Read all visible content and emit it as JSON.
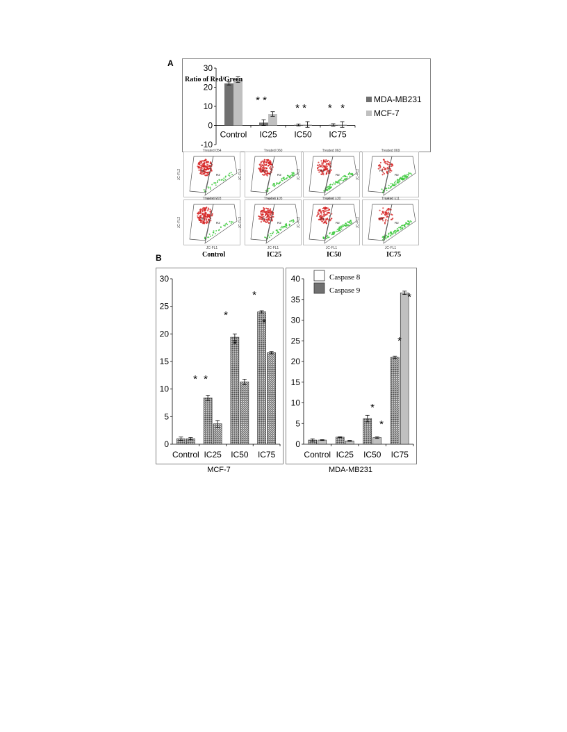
{
  "panels": {
    "a": "A",
    "b": "B"
  },
  "colors": {
    "dark_gray": "#707070",
    "light_gray": "#c0c0c0",
    "flow_red": "#d42020",
    "flow_green": "#38c838"
  },
  "chart_data": [
    {
      "id": "ratio",
      "type": "bar",
      "ylabel": "Ratio of  Red/Green",
      "categories": [
        "Control",
        "IC25",
        "IC50",
        "IC75"
      ],
      "ylim": [
        -10,
        30
      ],
      "yticks": [
        -10,
        0,
        10,
        20,
        30
      ],
      "legend_position": "right",
      "series": [
        {
          "name": "MDA-MB231",
          "color": "#707070",
          "values": [
            22,
            1.5,
            0.3,
            0.3
          ],
          "errors": [
            0.8,
            1.5,
            0.5,
            0.6
          ]
        },
        {
          "name": "MCF-7",
          "color": "#c0c0c0",
          "values": [
            24,
            6,
            0.5,
            0.5
          ],
          "errors": [
            1.5,
            1.2,
            1.5,
            1.5
          ]
        }
      ],
      "annotations": [
        "* *",
        "* *",
        "*   *"
      ]
    },
    {
      "id": "caspase_mcf7",
      "type": "bar",
      "xlabel": "MCF-7",
      "categories": [
        "Control",
        "IC25",
        "IC50",
        "IC75"
      ],
      "ylim": [
        0,
        30
      ],
      "yticks": [
        0,
        5,
        10,
        15,
        20,
        25,
        30
      ],
      "series": [
        {
          "name": "Caspase 8",
          "values": [
            1.0,
            8.4,
            19.4,
            24.0
          ],
          "errors": [
            0.3,
            0.5,
            0.6,
            0.2
          ]
        },
        {
          "name": "Caspase 9",
          "values": [
            1.0,
            3.7,
            11.3,
            16.6
          ],
          "errors": [
            0.2,
            0.6,
            0.5,
            0.2
          ]
        }
      ],
      "stars": [
        "*",
        "*"
      ]
    },
    {
      "id": "caspase_mda",
      "type": "bar",
      "xlabel": "MDA-MB231",
      "categories": [
        "Control",
        "IC25",
        "IC50",
        "IC75"
      ],
      "ylim": [
        0,
        40
      ],
      "yticks": [
        0,
        5,
        10,
        15,
        20,
        25,
        30,
        35,
        40
      ],
      "legend_position": "top-left",
      "series": [
        {
          "name": "Caspase 8",
          "values": [
            1.0,
            1.7,
            6.2,
            21.0
          ],
          "errors": [
            0.3,
            0.1,
            0.8,
            0.3
          ]
        },
        {
          "name": "Caspase 9",
          "values": [
            1.0,
            0.8,
            1.6,
            36.6
          ],
          "errors": [
            0.1,
            0.1,
            0.2,
            0.4
          ]
        }
      ],
      "stars": [
        "*",
        "*"
      ]
    }
  ],
  "flow": {
    "titles": [
      [
        "Treated 054",
        "Treated 060",
        "Treated 063",
        "Treated 069"
      ],
      [
        "Treated 093",
        "Treated 105",
        "Treated 130",
        "Treated 111"
      ]
    ],
    "xaxis": "JC-FL1",
    "yaxis": "JC-FL2",
    "gate1": "R1",
    "gate2": "R2",
    "columns": [
      "Control",
      "IC25",
      "IC50",
      "IC75"
    ],
    "red_amount": [
      1.0,
      0.85,
      0.7,
      0.4
    ],
    "green_amount": [
      0.25,
      0.45,
      0.65,
      0.75
    ]
  }
}
